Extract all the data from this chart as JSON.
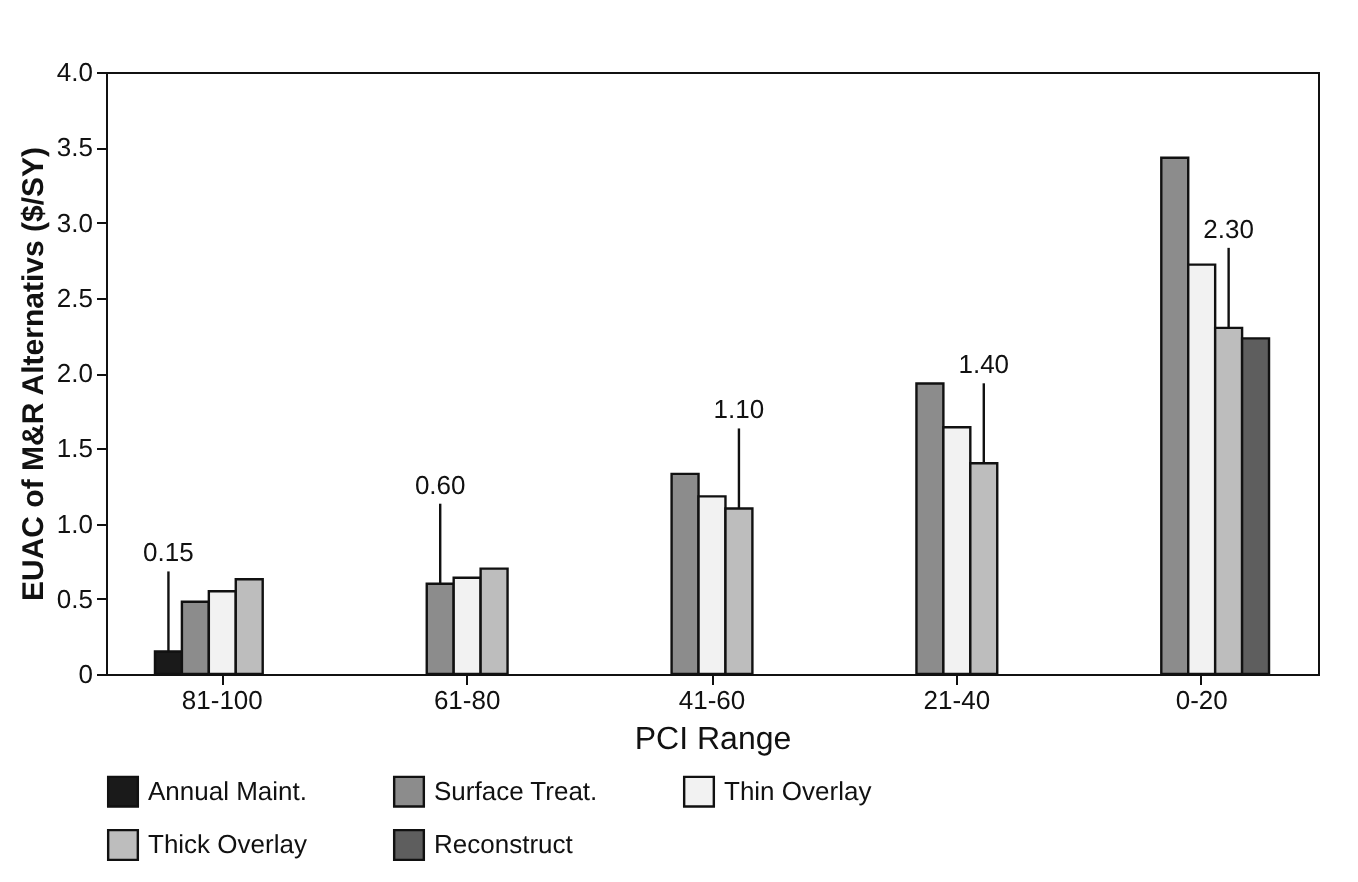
{
  "chart_data": {
    "type": "bar",
    "xlabel": "PCI Range",
    "ylabel": "EUAC of M&R Alternativs ($/SY)",
    "categories": [
      "81-100",
      "61-80",
      "41-60",
      "21-40",
      "0-20"
    ],
    "series": [
      {
        "name": "Annual Maint.",
        "color": "#1a1a1a",
        "values": [
          0.15,
          null,
          null,
          null,
          null
        ],
        "value_labels": [
          "0.15",
          null,
          null,
          null,
          null
        ]
      },
      {
        "name": "Surface Treat.",
        "color": "#8c8c8c",
        "values": [
          0.48,
          0.6,
          1.33,
          1.93,
          3.43
        ],
        "value_labels": [
          null,
          "0.60",
          null,
          null,
          null
        ]
      },
      {
        "name": "Thin Overlay",
        "color": "#f2f2f2",
        "values": [
          0.55,
          0.64,
          1.18,
          1.64,
          2.72
        ]
      },
      {
        "name": "Thick Overlay",
        "color": "#bdbdbd",
        "values": [
          0.63,
          0.7,
          1.1,
          1.4,
          2.3
        ],
        "value_labels": [
          null,
          null,
          "1.10",
          "1.40",
          "2.30"
        ]
      },
      {
        "name": "Reconstruct",
        "color": "#5e5e5e",
        "values": [
          null,
          null,
          null,
          null,
          2.23
        ]
      }
    ],
    "ylim": [
      0,
      4
    ],
    "yticks": [
      0,
      0.5,
      {
        "value": 1,
        "label": "1.0"
      },
      1.5,
      {
        "value": 2,
        "label": "2.0"
      },
      2.5,
      {
        "value": 3,
        "label": "3.0"
      },
      3.5,
      {
        "value": 4,
        "label": "4.0"
      }
    ],
    "legend": "bottom",
    "grid": false
  }
}
